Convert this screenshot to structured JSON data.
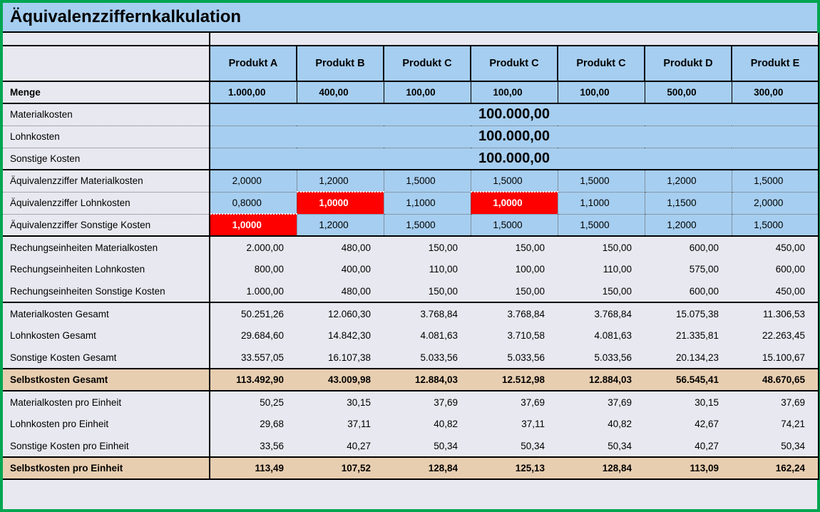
{
  "title": "Äquivalenzziffernkalkulation",
  "type": "table",
  "background_color": "#e8e8f0",
  "header_bg": "#a6cef0",
  "highlight_bg": "#e8ceb0",
  "red_bg": "#ff0000",
  "border_color": "#000000",
  "outer_border_color": "#00a651",
  "columns": [
    "Produkt A",
    "Produkt B",
    "Produkt C",
    "Produkt C",
    "Produkt C",
    "Produkt D",
    "Produkt E"
  ],
  "rows": {
    "menge": {
      "label": "Menge",
      "values": [
        "1.000,00",
        "400,00",
        "100,00",
        "100,00",
        "100,00",
        "500,00",
        "300,00"
      ]
    },
    "materialkosten": {
      "label": "Materialkosten",
      "merged": "100.000,00"
    },
    "lohnkosten": {
      "label": "Lohnkosten",
      "merged": "100.000,00"
    },
    "sonstige": {
      "label": "Sonstige Kosten",
      "merged": "100.000,00"
    },
    "eq_mat": {
      "label": "Äquivalenzziffer Materialkosten",
      "values": [
        "2,0000",
        "1,2000",
        "1,5000",
        "1,5000",
        "1,5000",
        "1,2000",
        "1,5000"
      ],
      "red": []
    },
    "eq_lohn": {
      "label": "Äquivalenzziffer Lohnkosten",
      "values": [
        "0,8000",
        "1,0000",
        "1,1000",
        "1,0000",
        "1,1000",
        "1,1500",
        "2,0000"
      ],
      "red": [
        1,
        3
      ]
    },
    "eq_sonst": {
      "label": "Äquivalenzziffer Sonstige Kosten",
      "values": [
        "1,0000",
        "1,2000",
        "1,5000",
        "1,5000",
        "1,5000",
        "1,2000",
        "1,5000"
      ],
      "red": [
        0
      ]
    },
    "re_mat": {
      "label": "Rechungseinheiten Materialkosten",
      "values": [
        "2.000,00",
        "480,00",
        "150,00",
        "150,00",
        "150,00",
        "600,00",
        "450,00"
      ]
    },
    "re_lohn": {
      "label": "Rechungseinheiten Lohnkosten",
      "values": [
        "800,00",
        "400,00",
        "110,00",
        "100,00",
        "110,00",
        "575,00",
        "600,00"
      ]
    },
    "re_sonst": {
      "label": "Rechungseinheiten Sonstige Kosten",
      "values": [
        "1.000,00",
        "480,00",
        "150,00",
        "150,00",
        "150,00",
        "600,00",
        "450,00"
      ]
    },
    "mat_ges": {
      "label": "Materialkosten Gesamt",
      "values": [
        "50.251,26",
        "12.060,30",
        "3.768,84",
        "3.768,84",
        "3.768,84",
        "15.075,38",
        "11.306,53"
      ]
    },
    "lohn_ges": {
      "label": "Lohnkosten Gesamt",
      "values": [
        "29.684,60",
        "14.842,30",
        "4.081,63",
        "3.710,58",
        "4.081,63",
        "21.335,81",
        "22.263,45"
      ]
    },
    "sonst_ges": {
      "label": "Sonstige Kosten Gesamt",
      "values": [
        "33.557,05",
        "16.107,38",
        "5.033,56",
        "5.033,56",
        "5.033,56",
        "20.134,23",
        "15.100,67"
      ]
    },
    "selbst_ges": {
      "label": "Selbstkosten Gesamt",
      "values": [
        "113.492,90",
        "43.009,98",
        "12.884,03",
        "12.512,98",
        "12.884,03",
        "56.545,41",
        "48.670,65"
      ]
    },
    "mat_pe": {
      "label": "Materialkosten pro Einheit",
      "values": [
        "50,25",
        "30,15",
        "37,69",
        "37,69",
        "37,69",
        "30,15",
        "37,69"
      ]
    },
    "lohn_pe": {
      "label": "Lohnkosten pro Einheit",
      "values": [
        "29,68",
        "37,11",
        "40,82",
        "37,11",
        "40,82",
        "42,67",
        "74,21"
      ]
    },
    "sonst_pe": {
      "label": "Sonstige Kosten pro Einheit",
      "values": [
        "33,56",
        "40,27",
        "50,34",
        "50,34",
        "50,34",
        "40,27",
        "50,34"
      ]
    },
    "selbst_pe": {
      "label": "Selbstkosten pro Einheit",
      "values": [
        "113,49",
        "107,52",
        "128,84",
        "125,13",
        "128,84",
        "113,09",
        "162,24"
      ]
    }
  }
}
